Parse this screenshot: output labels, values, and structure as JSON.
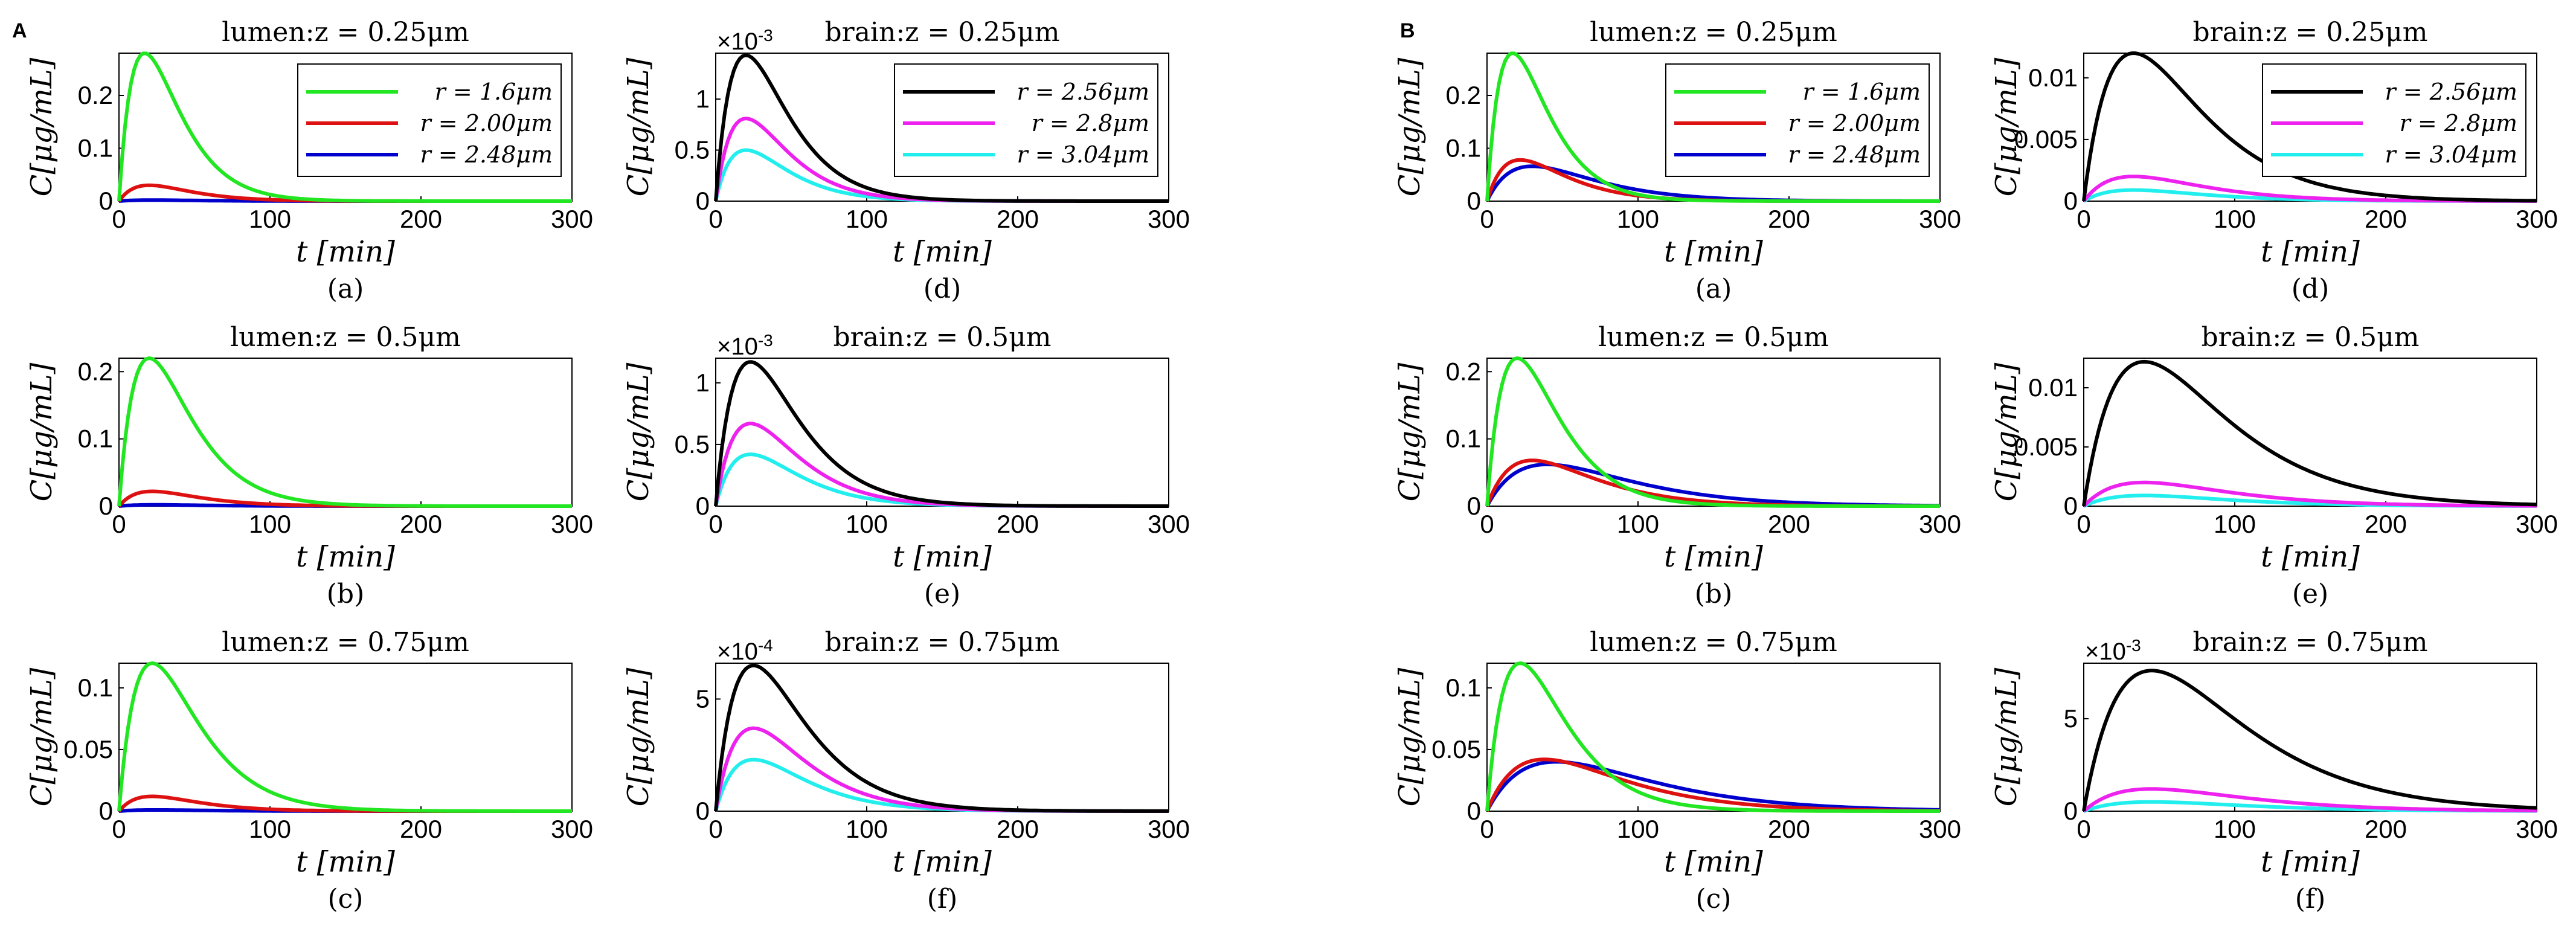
{
  "figure": {
    "panel_labels": [
      "A",
      "B"
    ],
    "colors": {
      "green": "#22e622",
      "red": "#dd1111",
      "blue": "#0000cc",
      "black": "#000000",
      "magenta": "#ee22ee",
      "cyan": "#22eeee"
    }
  },
  "chart_data": [
    {
      "id": "A-a",
      "type": "line",
      "title": "lumen:z = 0.25μm",
      "xlabel": "t [min]",
      "ylabel": "C[μg/mL]",
      "sublabel": "(a)",
      "xlim": [
        0,
        300
      ],
      "ylim": [
        0,
        0.28
      ],
      "xticks": [
        0,
        100,
        200,
        300
      ],
      "yticks": [
        0,
        0.1,
        0.2
      ],
      "ytick_labels": [
        "0",
        "0.1",
        "0.2"
      ],
      "legend": "top-right",
      "series": [
        {
          "name": "r = 1.6μm",
          "color": "#22e622",
          "peak_t": 17,
          "peak": 0.28
        },
        {
          "name": "r = 2.00μm",
          "color": "#dd1111",
          "peak_t": 20,
          "peak": 0.03
        },
        {
          "name": "r = 2.48μm",
          "color": "#0000cc",
          "peak_t": 22,
          "peak": 0.002
        }
      ]
    },
    {
      "id": "A-d",
      "type": "line",
      "title": "brain:z = 0.25μm",
      "xlabel": "t [min]",
      "ylabel": "C[μg/mL]",
      "sublabel": "(d)",
      "exponent": "-3",
      "xlim": [
        0,
        300
      ],
      "ylim": [
        0,
        1.45
      ],
      "xticks": [
        0,
        100,
        200,
        300
      ],
      "yticks": [
        0,
        0.5,
        1
      ],
      "ytick_labels": [
        "0",
        "0.5",
        "1"
      ],
      "legend": "top-right",
      "series": [
        {
          "name": "r = 2.56μm",
          "color": "#000000",
          "peak_t": 20,
          "peak": 1.43
        },
        {
          "name": "r = 2.8μm",
          "color": "#ee22ee",
          "peak_t": 20,
          "peak": 0.81
        },
        {
          "name": "r = 3.04μm",
          "color": "#22eeee",
          "peak_t": 20,
          "peak": 0.5
        }
      ]
    },
    {
      "id": "A-b",
      "type": "line",
      "title": "lumen:z = 0.5μm",
      "xlabel": "t [min]",
      "ylabel": "C[μg/mL]",
      "sublabel": "(b)",
      "xlim": [
        0,
        300
      ],
      "ylim": [
        0,
        0.22
      ],
      "xticks": [
        0,
        100,
        200,
        300
      ],
      "yticks": [
        0,
        0.1,
        0.2
      ],
      "ytick_labels": [
        "0",
        "0.1",
        "0.2"
      ],
      "series": [
        {
          "name": "r = 1.6μm",
          "color": "#22e622",
          "peak_t": 20,
          "peak": 0.22
        },
        {
          "name": "r = 2.00μm",
          "color": "#dd1111",
          "peak_t": 22,
          "peak": 0.022
        },
        {
          "name": "r = 2.48μm",
          "color": "#0000cc",
          "peak_t": 24,
          "peak": 0.002
        }
      ]
    },
    {
      "id": "A-e",
      "type": "line",
      "title": "brain:z = 0.5μm",
      "xlabel": "t [min]",
      "ylabel": "C[μg/mL]",
      "sublabel": "(e)",
      "exponent": "-3",
      "xlim": [
        0,
        300
      ],
      "ylim": [
        0,
        1.2
      ],
      "xticks": [
        0,
        100,
        200,
        300
      ],
      "yticks": [
        0,
        0.5,
        1
      ],
      "ytick_labels": [
        "0",
        "0.5",
        "1"
      ],
      "series": [
        {
          "name": "r = 2.56μm",
          "color": "#000000",
          "peak_t": 23,
          "peak": 1.17
        },
        {
          "name": "r = 2.8μm",
          "color": "#ee22ee",
          "peak_t": 23,
          "peak": 0.67
        },
        {
          "name": "r = 3.04μm",
          "color": "#22eeee",
          "peak_t": 23,
          "peak": 0.42
        }
      ]
    },
    {
      "id": "A-c",
      "type": "line",
      "title": "lumen:z = 0.75μm",
      "xlabel": "t [min]",
      "ylabel": "C[μg/mL]",
      "sublabel": "(c)",
      "xlim": [
        0,
        300
      ],
      "ylim": [
        0,
        0.12
      ],
      "xticks": [
        0,
        100,
        200,
        300
      ],
      "yticks": [
        0,
        0.05,
        0.1
      ],
      "ytick_labels": [
        "0",
        "0.05",
        "0.1"
      ],
      "series": [
        {
          "name": "r = 1.6μm",
          "color": "#22e622",
          "peak_t": 22,
          "peak": 0.12
        },
        {
          "name": "r = 2.00μm",
          "color": "#dd1111",
          "peak_t": 22,
          "peak": 0.012
        },
        {
          "name": "r = 2.48μm",
          "color": "#0000cc",
          "peak_t": 24,
          "peak": 0.001
        }
      ]
    },
    {
      "id": "A-f",
      "type": "line",
      "title": "brain:z = 0.75μm",
      "xlabel": "t [min]",
      "ylabel": "C[μg/mL]",
      "sublabel": "(f)",
      "exponent": "-4",
      "xlim": [
        0,
        300
      ],
      "ylim": [
        0,
        6.6
      ],
      "xticks": [
        0,
        100,
        200,
        300
      ],
      "yticks": [
        0,
        5
      ],
      "ytick_labels": [
        "0",
        "5"
      ],
      "series": [
        {
          "name": "r = 2.56μm",
          "color": "#000000",
          "peak_t": 25,
          "peak": 6.5
        },
        {
          "name": "r = 2.8μm",
          "color": "#ee22ee",
          "peak_t": 25,
          "peak": 3.7
        },
        {
          "name": "r = 3.04μm",
          "color": "#22eeee",
          "peak_t": 25,
          "peak": 2.3
        }
      ]
    },
    {
      "id": "B-a",
      "type": "line",
      "title": "lumen:z = 0.25μm",
      "xlabel": "t [min]",
      "ylabel": "C[μg/mL]",
      "sublabel": "(a)",
      "xlim": [
        0,
        300
      ],
      "ylim": [
        0,
        0.28
      ],
      "xticks": [
        0,
        100,
        200,
        300
      ],
      "yticks": [
        0,
        0.1,
        0.2
      ],
      "ytick_labels": [
        "0",
        "0.1",
        "0.2"
      ],
      "legend": "top-right",
      "series": [
        {
          "name": "r = 1.6μm",
          "color": "#22e622",
          "peak_t": 17,
          "peak": 0.28
        },
        {
          "name": "r = 2.00μm",
          "color": "#dd1111",
          "peak_t": 22,
          "peak": 0.078
        },
        {
          "name": "r = 2.48μm",
          "color": "#0000cc",
          "peak_t": 30,
          "peak": 0.066
        }
      ]
    },
    {
      "id": "B-d",
      "type": "line",
      "title": "brain:z = 0.25μm",
      "xlabel": "t [min]",
      "ylabel": "C[μg/mL]",
      "sublabel": "(d)",
      "xlim": [
        0,
        300
      ],
      "ylim": [
        0,
        0.012
      ],
      "xticks": [
        0,
        100,
        200,
        300
      ],
      "yticks": [
        0,
        0.005,
        0.01
      ],
      "ytick_labels": [
        "0",
        "0.005",
        "0.01"
      ],
      "legend": "top-right",
      "series": [
        {
          "name": "r = 2.56μm",
          "color": "#000000",
          "peak_t": 33,
          "peak": 0.012
        },
        {
          "name": "r = 2.8μm",
          "color": "#ee22ee",
          "peak_t": 33,
          "peak": 0.002
        },
        {
          "name": "r = 3.04μm",
          "color": "#22eeee",
          "peak_t": 33,
          "peak": 0.0009
        }
      ]
    },
    {
      "id": "B-b",
      "type": "line",
      "title": "lumen:z = 0.5μm",
      "xlabel": "t [min]",
      "ylabel": "C[μg/mL]",
      "sublabel": "(b)",
      "xlim": [
        0,
        300
      ],
      "ylim": [
        0,
        0.22
      ],
      "xticks": [
        0,
        100,
        200,
        300
      ],
      "yticks": [
        0,
        0.1,
        0.2
      ],
      "ytick_labels": [
        "0",
        "0.1",
        "0.2"
      ],
      "series": [
        {
          "name": "r = 1.6μm",
          "color": "#22e622",
          "peak_t": 20,
          "peak": 0.22
        },
        {
          "name": "r = 2.00μm",
          "color": "#dd1111",
          "peak_t": 30,
          "peak": 0.068
        },
        {
          "name": "r = 2.48μm",
          "color": "#0000cc",
          "peak_t": 40,
          "peak": 0.062
        }
      ]
    },
    {
      "id": "B-e",
      "type": "line",
      "title": "brain:z = 0.5μm",
      "xlabel": "t [min]",
      "ylabel": "C[μg/mL]",
      "sublabel": "(e)",
      "xlim": [
        0,
        300
      ],
      "ylim": [
        0,
        0.0125
      ],
      "xticks": [
        0,
        100,
        200,
        300
      ],
      "yticks": [
        0,
        0.005,
        0.01
      ],
      "ytick_labels": [
        "0",
        "0.005",
        "0.01"
      ],
      "series": [
        {
          "name": "r = 2.56μm",
          "color": "#000000",
          "peak_t": 40,
          "peak": 0.0122
        },
        {
          "name": "r = 2.8μm",
          "color": "#ee22ee",
          "peak_t": 40,
          "peak": 0.002
        },
        {
          "name": "r = 3.04μm",
          "color": "#22eeee",
          "peak_t": 40,
          "peak": 0.0009
        }
      ]
    },
    {
      "id": "B-c",
      "type": "line",
      "title": "lumen:z = 0.75μm",
      "xlabel": "t [min]",
      "ylabel": "C[μg/mL]",
      "sublabel": "(c)",
      "xlim": [
        0,
        300
      ],
      "ylim": [
        0,
        0.12
      ],
      "xticks": [
        0,
        100,
        200,
        300
      ],
      "yticks": [
        0,
        0.05,
        0.1
      ],
      "ytick_labels": [
        "0",
        "0.05",
        "0.1"
      ],
      "series": [
        {
          "name": "r = 1.6μm",
          "color": "#22e622",
          "peak_t": 22,
          "peak": 0.12
        },
        {
          "name": "r = 2.00μm",
          "color": "#dd1111",
          "peak_t": 38,
          "peak": 0.042
        },
        {
          "name": "r = 2.48μm",
          "color": "#0000cc",
          "peak_t": 46,
          "peak": 0.04
        }
      ]
    },
    {
      "id": "B-f",
      "type": "line",
      "title": "brain:z = 0.75μm",
      "xlabel": "t [min]",
      "ylabel": "C[μg/mL]",
      "sublabel": "(f)",
      "exponent": "-3",
      "xlim": [
        0,
        300
      ],
      "ylim": [
        0,
        8
      ],
      "xticks": [
        0,
        100,
        200,
        300
      ],
      "yticks": [
        0,
        5
      ],
      "ytick_labels": [
        "0",
        "5"
      ],
      "series": [
        {
          "name": "r = 2.56μm",
          "color": "#000000",
          "peak_t": 45,
          "peak": 7.6
        },
        {
          "name": "r = 2.8μm",
          "color": "#ee22ee",
          "peak_t": 45,
          "peak": 1.2
        },
        {
          "name": "r = 3.04μm",
          "color": "#22eeee",
          "peak_t": 45,
          "peak": 0.5
        }
      ]
    }
  ]
}
